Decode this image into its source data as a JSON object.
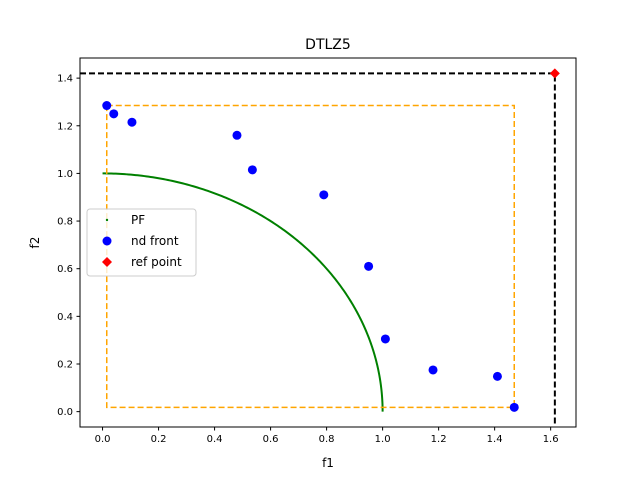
{
  "chart_data": {
    "type": "scatter",
    "title": "DTLZ5",
    "xlabel": "f1",
    "ylabel": "f2",
    "xlim": [
      -0.0805,
      1.6905
    ],
    "ylim": [
      -0.0645,
      1.4845
    ],
    "xticks": [
      0.0,
      0.2,
      0.4,
      0.6,
      0.8,
      1.0,
      1.2,
      1.4,
      1.6
    ],
    "yticks": [
      0.0,
      0.2,
      0.4,
      0.6,
      0.8,
      1.0,
      1.2,
      1.4
    ],
    "xtick_labels": [
      "0.0",
      "0.2",
      "0.4",
      "0.6",
      "0.8",
      "1.0",
      "1.2",
      "1.4",
      "1.6"
    ],
    "ytick_labels": [
      "0.0",
      "0.2",
      "0.4",
      "0.6",
      "0.8",
      "1.0",
      "1.2",
      "1.4"
    ],
    "grid": false,
    "legend_position": "center-left",
    "series": [
      {
        "name": "PF",
        "kind": "curve",
        "color": "#008000",
        "description_formula": "quarter circle of radius 1 (f1^2 + f2^2 = 1)",
        "x_range": [
          0,
          1
        ]
      },
      {
        "name": "nd front",
        "kind": "points",
        "color": "#0000ff",
        "points": [
          [
            0.015,
            1.285
          ],
          [
            0.04,
            1.25
          ],
          [
            0.105,
            1.215
          ],
          [
            0.48,
            1.16
          ],
          [
            0.535,
            1.015
          ],
          [
            0.79,
            0.91
          ],
          [
            0.95,
            0.61
          ],
          [
            1.01,
            0.305
          ],
          [
            1.18,
            0.175
          ],
          [
            1.41,
            0.148
          ],
          [
            1.47,
            0.018
          ]
        ]
      },
      {
        "name": "ref point",
        "kind": "marker",
        "color": "#ff0000",
        "points": [
          [
            1.615,
            1.42
          ]
        ]
      }
    ],
    "ref_box": {
      "color": "#000000",
      "corner": [
        1.615,
        1.42
      ]
    },
    "nd_bounding_box": {
      "color": "#ffa500",
      "x": [
        0.015,
        1.47
      ],
      "y": [
        0.018,
        1.285
      ]
    }
  }
}
